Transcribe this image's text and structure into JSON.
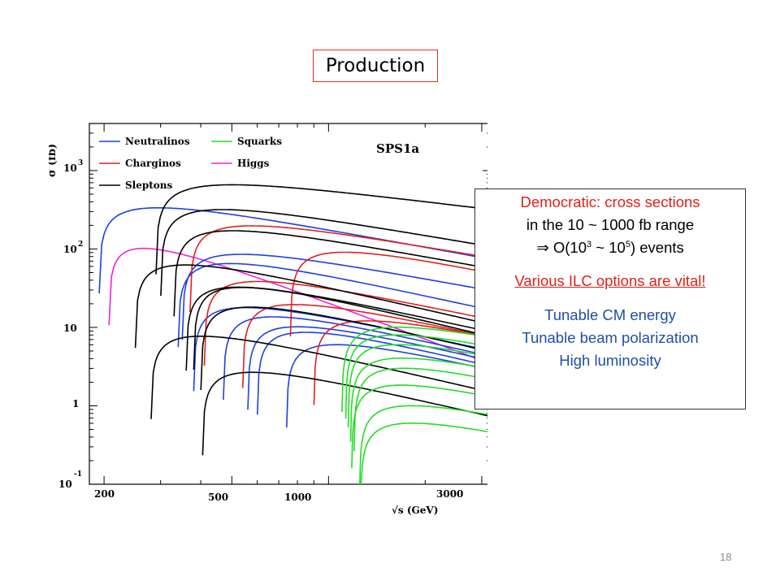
{
  "title": "Production",
  "page_number": "18",
  "plot": {
    "label": "SPS1a",
    "y_axis_label": "σ (fb)",
    "x_axis_label": "√s (GeV)",
    "x_ticks": [
      "200",
      "500",
      "1000",
      "3000"
    ],
    "y_ticks": [
      "10^-1",
      "1",
      "10",
      "10^2",
      "10^3"
    ],
    "legend": [
      {
        "name": "Neutralinos",
        "color": "#1f3fe0"
      },
      {
        "name": "Squarks",
        "color": "#22dd22"
      },
      {
        "name": "Charginos",
        "color": "#e02020"
      },
      {
        "name": "Higgs",
        "color": "#ee22dd"
      },
      {
        "name": "Sleptons",
        "color": "#000000"
      }
    ]
  },
  "info": {
    "line1_red": "Democratic",
    "line1_rest": ": cross sections",
    "line2": "in the 10 ~ 1000 fb range",
    "line3_prefix": "⇒ O(10",
    "line3_exp1": "3",
    "line3_mid": " ~ 10",
    "line3_exp2": "5",
    "line3_suffix": ") events",
    "vital": "Various ILC options are vital!",
    "opt1": "Tunable CM energy",
    "opt2": "Tunable beam polarization",
    "opt3": "High luminosity"
  }
}
